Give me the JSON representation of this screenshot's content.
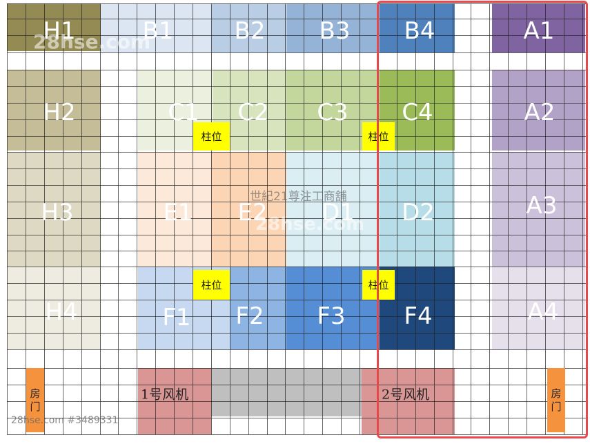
{
  "zones": [
    {
      "id": "H1",
      "label": "H1",
      "color": "#948a54"
    },
    {
      "id": "H2",
      "label": "H2",
      "color": "#c4bd97"
    },
    {
      "id": "H3",
      "label": "H3",
      "color": "#ddd9c3"
    },
    {
      "id": "H4",
      "label": "H4",
      "color": "#eeece1"
    },
    {
      "id": "B1",
      "label": "B1",
      "color": "#dce6f2"
    },
    {
      "id": "B2",
      "label": "B2",
      "color": "#b9cde5"
    },
    {
      "id": "B3",
      "label": "B3",
      "color": "#95b3d7"
    },
    {
      "id": "B4",
      "label": "B4",
      "color": "#4f81bd"
    },
    {
      "id": "A1",
      "label": "A1",
      "color": "#8064a2"
    },
    {
      "id": "A2",
      "label": "A2",
      "color": "#b2a2c7"
    },
    {
      "id": "A3",
      "label": "A3",
      "color": "#ccc1da"
    },
    {
      "id": "A4",
      "label": "A4",
      "color": "#e5e0ec"
    },
    {
      "id": "C1",
      "label": "C1",
      "color": "#ebf1de"
    },
    {
      "id": "C2",
      "label": "C2",
      "color": "#d7e4bd"
    },
    {
      "id": "C3",
      "label": "C3",
      "color": "#c3d69b"
    },
    {
      "id": "C4",
      "label": "C4",
      "color": "#9bbb59"
    },
    {
      "id": "E1",
      "label": "E1",
      "color": "#fde9d9"
    },
    {
      "id": "E2",
      "label": "E2",
      "color": "#fcd5b5"
    },
    {
      "id": "D1",
      "label": "D1",
      "color": "#dbeef4"
    },
    {
      "id": "D2",
      "label": "D2",
      "color": "#b7dde8"
    },
    {
      "id": "F1",
      "label": "F1",
      "color": "#c6d9f1"
    },
    {
      "id": "F2",
      "label": "F2",
      "color": "#8eb4e3"
    },
    {
      "id": "F3",
      "label": "F3",
      "color": "#558ed5"
    },
    {
      "id": "F4",
      "label": "F4",
      "color": "#1f497d"
    }
  ],
  "pillars": [
    {
      "label": "柱位"
    },
    {
      "label": "柱位"
    },
    {
      "label": "柱位"
    },
    {
      "label": "柱位"
    }
  ],
  "fans": [
    {
      "label": "1号风机",
      "color": "#d99694"
    },
    {
      "label": "2号风机",
      "color": "#d99694"
    }
  ],
  "fan_gap_color": "#bfbfbf",
  "door": {
    "label": "房\n门",
    "color": "#f5923e"
  },
  "doors": [
    {
      "label": "房\n门"
    },
    {
      "label": "房\n门"
    }
  ],
  "center_title": "世紀21尊注工商舖",
  "watermarks": [
    "28hse.com",
    "28hse.com"
  ],
  "footer_id": "28hse.com #3489331",
  "highlight_color": "#e8474c"
}
